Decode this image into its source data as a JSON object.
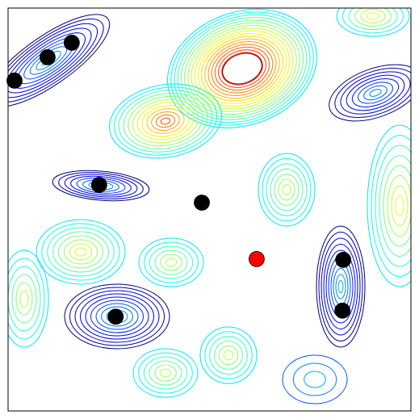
{
  "chart_data": {
    "type": "scatter",
    "xlim": [
      0,
      1
    ],
    "ylim": [
      0,
      1
    ],
    "series": [
      {
        "color": "#000000",
        "x": [
          0.016,
          0.098,
          0.158,
          0.226,
          0.481,
          0.267,
          0.832,
          0.83
        ],
        "values": [
          0.82,
          0.878,
          0.914,
          0.561,
          0.517,
          0.234,
          0.375,
          0.249
        ]
      },
      {
        "color": "#ff0000",
        "x": [
          0.617
        ],
        "values": [
          0.377
        ]
      }
    ]
  }
}
